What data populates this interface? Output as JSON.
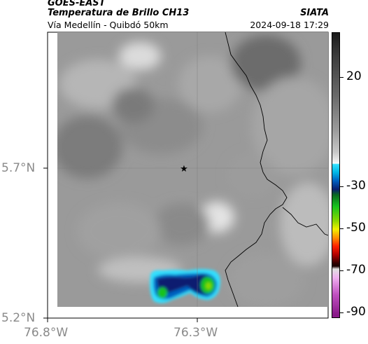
{
  "header": {
    "satellite": "GOES-EAST",
    "product": "Temperatura de Brillo CH13",
    "region": "Vía Medellín - Quibdó 50km",
    "agency": "SIATA",
    "datetime": "2024-09-18 17:29"
  },
  "axes": {
    "lat_labels": [
      "5.7°N",
      "5.2°N"
    ],
    "lon_labels": [
      "76.8°W",
      "76.3°W"
    ]
  },
  "colorbar": {
    "tick_labels": [
      "20",
      "-30",
      "-50",
      "-70",
      "-90"
    ]
  },
  "map": {
    "marker": "star-icon",
    "colors": {
      "cold_core": "#17c31d",
      "cold_edge": "#0a1f70",
      "ice": "#33e0ff"
    }
  }
}
